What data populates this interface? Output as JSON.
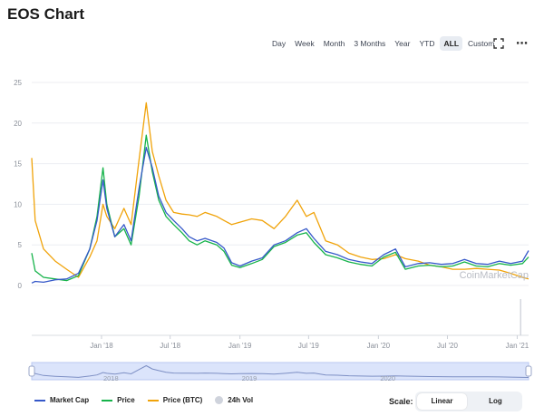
{
  "page": {
    "title": "EOS Chart"
  },
  "toolbar": {
    "ranges": [
      "Day",
      "Week",
      "Month",
      "3 Months",
      "Year",
      "YTD",
      "ALL",
      "Custom"
    ],
    "active_range": "ALL",
    "expand_icon": "expand-icon",
    "more_icon": "more-icon"
  },
  "watermark": "CoinMarketCap",
  "scale": {
    "label": "Scale:",
    "options": [
      "Linear",
      "Log"
    ],
    "active": "Linear"
  },
  "legend": [
    {
      "name": "Market Cap",
      "color": "#3558c9",
      "marker": "line"
    },
    {
      "name": "Price",
      "color": "#16b34a",
      "marker": "line"
    },
    {
      "name": "Price (BTC)",
      "color": "#f0a30a",
      "marker": "line"
    },
    {
      "name": "24h Vol",
      "color": "#cfd3dc",
      "marker": "dot"
    }
  ],
  "chart_data": {
    "type": "line",
    "title": "EOS Chart",
    "xlabel": "",
    "ylabel": "",
    "x_ticks": [
      "Jan '18",
      "Jul '18",
      "Jan '19",
      "Jul '19",
      "Jan '20",
      "Jul '20",
      "Jan '21"
    ],
    "y_ticks": [
      0,
      5,
      10,
      15,
      20,
      25
    ],
    "ylim": [
      0,
      25
    ],
    "xlim": [
      "2017-07-01",
      "2021-01-31"
    ],
    "grid": true,
    "legend_position": "bottom-left",
    "navigator_ticks": [
      "2018",
      "2019",
      "2020"
    ],
    "x": [
      "2017-07-01",
      "2017-07-10",
      "2017-08-01",
      "2017-09-01",
      "2017-10-01",
      "2017-11-01",
      "2017-12-01",
      "2017-12-20",
      "2018-01-05",
      "2018-01-15",
      "2018-02-05",
      "2018-03-01",
      "2018-03-20",
      "2018-04-10",
      "2018-04-29",
      "2018-05-15",
      "2018-06-01",
      "2018-06-20",
      "2018-07-10",
      "2018-08-01",
      "2018-08-20",
      "2018-09-10",
      "2018-10-01",
      "2018-11-01",
      "2018-11-20",
      "2018-12-10",
      "2019-01-01",
      "2019-02-01",
      "2019-03-01",
      "2019-04-01",
      "2019-05-01",
      "2019-06-01",
      "2019-06-25",
      "2019-07-15",
      "2019-08-15",
      "2019-09-15",
      "2019-10-15",
      "2019-11-15",
      "2019-12-15",
      "2020-01-15",
      "2020-02-15",
      "2020-03-12",
      "2020-04-15",
      "2020-05-15",
      "2020-06-15",
      "2020-07-15",
      "2020-08-15",
      "2020-09-15",
      "2020-10-15",
      "2020-11-15",
      "2020-12-15",
      "2021-01-15",
      "2021-01-31"
    ],
    "series": [
      {
        "name": "Market Cap",
        "color": "#3558c9",
        "values": [
          0.3,
          0.5,
          0.4,
          0.7,
          0.8,
          1.5,
          4.5,
          8.0,
          13.0,
          9.5,
          6.0,
          7.5,
          5.5,
          12.0,
          17.0,
          14.5,
          11.0,
          9.0,
          8.0,
          7.0,
          6.0,
          5.5,
          5.8,
          5.3,
          4.6,
          2.8,
          2.4,
          3.0,
          3.4,
          5.0,
          5.5,
          6.5,
          7.0,
          5.8,
          4.2,
          3.8,
          3.2,
          2.9,
          2.7,
          3.8,
          4.5,
          2.3,
          2.7,
          2.8,
          2.6,
          2.7,
          3.2,
          2.7,
          2.6,
          3.0,
          2.7,
          3.0,
          4.3
        ]
      },
      {
        "name": "Price",
        "color": "#16b34a",
        "values": [
          4.0,
          1.8,
          1.0,
          0.8,
          0.6,
          1.2,
          4.5,
          8.5,
          14.5,
          10.0,
          6.0,
          7.0,
          5.0,
          11.0,
          18.5,
          14.0,
          10.5,
          8.5,
          7.5,
          6.5,
          5.5,
          5.0,
          5.5,
          5.0,
          4.2,
          2.5,
          2.2,
          2.7,
          3.2,
          4.8,
          5.3,
          6.2,
          6.5,
          5.3,
          3.8,
          3.4,
          2.9,
          2.6,
          2.4,
          3.5,
          4.1,
          2.0,
          2.4,
          2.5,
          2.3,
          2.4,
          2.9,
          2.4,
          2.3,
          2.7,
          2.5,
          2.7,
          3.5
        ]
      },
      {
        "name": "Price (BTC)",
        "color": "#f0a30a",
        "values": [
          15.7,
          8.0,
          4.5,
          3.0,
          2.0,
          1.0,
          3.5,
          5.5,
          10.0,
          8.5,
          7.0,
          9.5,
          7.5,
          15.5,
          22.5,
          16.5,
          13.5,
          10.5,
          9.0,
          8.8,
          8.7,
          8.5,
          9.0,
          8.5,
          8.0,
          7.5,
          7.8,
          8.2,
          8.0,
          7.0,
          8.5,
          10.5,
          8.5,
          9.0,
          5.5,
          5.0,
          4.0,
          3.5,
          3.2,
          3.3,
          3.8,
          3.3,
          3.0,
          2.5,
          2.3,
          2.0,
          2.0,
          2.1,
          2.0,
          1.9,
          1.5,
          1.0,
          0.8
        ]
      }
    ],
    "volume": {
      "name": "24h Vol",
      "note": "volume bars near zero except a spike near Jan '21",
      "spike_x": "2021-01-10"
    }
  }
}
